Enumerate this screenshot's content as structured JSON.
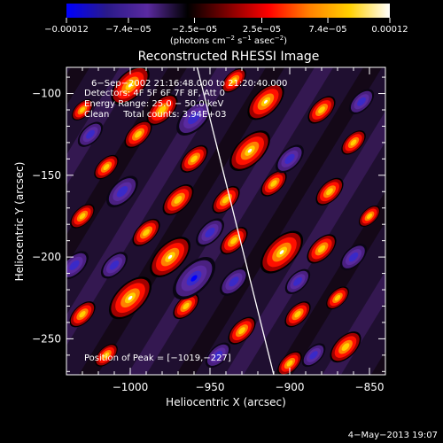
{
  "chart_data": {
    "type": "heatmap",
    "title": "Reconstructed RHESSI Image",
    "xlabel": "Heliocentric X (arcsec)",
    "ylabel": "Heliocentric Y (arcsec)",
    "xlim": [
      -1040,
      -840
    ],
    "ylim": [
      -272,
      -84
    ],
    "xticks": [
      -1000,
      -950,
      -900,
      -850
    ],
    "xtick_labels": [
      "−1000",
      "−950",
      "−900",
      "−850"
    ],
    "yticks": [
      -100,
      -150,
      -200,
      -250
    ],
    "ytick_labels": [
      "−100",
      "−150",
      "−200",
      "−250"
    ],
    "colorbar": {
      "min": -0.00012,
      "max": 0.00012,
      "ticks": [
        -0.00012,
        -7.4e-05,
        -2.5e-05,
        2.5e-05,
        7.4e-05,
        0.00012
      ],
      "tick_labels": [
        "−0.00012",
        "−7.4e−05",
        "−2.5e−05",
        "2.5e−05",
        "7.4e−05",
        "0.00012"
      ],
      "colormap_stops": [
        "#0000ff",
        "#2a1a8a",
        "#5a2aa0",
        "#000000",
        "#800000",
        "#ff0000",
        "#ff8000",
        "#ffd000",
        "#ffffff"
      ]
    },
    "annotations": [
      "6−Sep−2002 21:16:48.000 to 21:20:40.000",
      "Detectors: 4F 5F 6F 7F 8F, Att 0",
      "Energy Range: 25.0 − 50.0 keV",
      "Clean     Total counts: 3.94E+03"
    ],
    "peak_label": "Position of Peak = [−1019,−227]",
    "peak": [
      -1019,
      -227
    ],
    "limb_line": [
      [
        -958,
        -84
      ],
      [
        -910,
        -272
      ]
    ],
    "sources": [
      {
        "x": -1000,
        "y": -95,
        "v": 0.9
      },
      {
        "x": -980,
        "y": -110,
        "v": 0.7
      },
      {
        "x": -935,
        "y": -92,
        "v": 0.5
      },
      {
        "x": -915,
        "y": -105,
        "v": 0.85
      },
      {
        "x": -880,
        "y": -110,
        "v": 0.6
      },
      {
        "x": -860,
        "y": -130,
        "v": 0.5
      },
      {
        "x": -925,
        "y": -135,
        "v": 0.95
      },
      {
        "x": -960,
        "y": -140,
        "v": 0.6
      },
      {
        "x": -995,
        "y": -125,
        "v": 0.6
      },
      {
        "x": -1030,
        "y": -110,
        "v": 0.4
      },
      {
        "x": -1015,
        "y": -145,
        "v": 0.5
      },
      {
        "x": -970,
        "y": -165,
        "v": 0.7
      },
      {
        "x": -940,
        "y": -165,
        "v": 0.6
      },
      {
        "x": -910,
        "y": -155,
        "v": 0.55
      },
      {
        "x": -875,
        "y": -160,
        "v": 0.6
      },
      {
        "x": -850,
        "y": -175,
        "v": 0.4
      },
      {
        "x": -1030,
        "y": -175,
        "v": 0.5
      },
      {
        "x": -990,
        "y": -185,
        "v": 0.6
      },
      {
        "x": -975,
        "y": -200,
        "v": 0.95
      },
      {
        "x": -935,
        "y": -190,
        "v": 0.6
      },
      {
        "x": -905,
        "y": -197,
        "v": 1.0
      },
      {
        "x": -880,
        "y": -195,
        "v": 0.65
      },
      {
        "x": -1000,
        "y": -225,
        "v": 1.0
      },
      {
        "x": -1030,
        "y": -235,
        "v": 0.55
      },
      {
        "x": -965,
        "y": -230,
        "v": 0.55
      },
      {
        "x": -930,
        "y": -245,
        "v": 0.6
      },
      {
        "x": -895,
        "y": -235,
        "v": 0.55
      },
      {
        "x": -870,
        "y": -225,
        "v": 0.45
      },
      {
        "x": -865,
        "y": -255,
        "v": 0.7
      },
      {
        "x": -900,
        "y": -265,
        "v": 0.5
      },
      {
        "x": -1015,
        "y": -260,
        "v": 0.45
      },
      {
        "x": -960,
        "y": -115,
        "v": -0.8
      },
      {
        "x": -1025,
        "y": -125,
        "v": -0.5
      },
      {
        "x": -1005,
        "y": -160,
        "v": -0.7
      },
      {
        "x": -950,
        "y": -185,
        "v": -0.6
      },
      {
        "x": -1010,
        "y": -205,
        "v": -0.55
      },
      {
        "x": -960,
        "y": -213,
        "v": -1.0
      },
      {
        "x": -1035,
        "y": -205,
        "v": -0.6
      },
      {
        "x": -935,
        "y": -215,
        "v": -0.6
      },
      {
        "x": -900,
        "y": -140,
        "v": -0.6
      },
      {
        "x": -855,
        "y": -105,
        "v": -0.5
      },
      {
        "x": -860,
        "y": -200,
        "v": -0.55
      },
      {
        "x": -945,
        "y": -260,
        "v": -0.5
      },
      {
        "x": -895,
        "y": -215,
        "v": -0.5
      },
      {
        "x": -885,
        "y": -260,
        "v": -0.45
      }
    ]
  },
  "footer": {
    "date": "4−May−2013 19:07"
  }
}
